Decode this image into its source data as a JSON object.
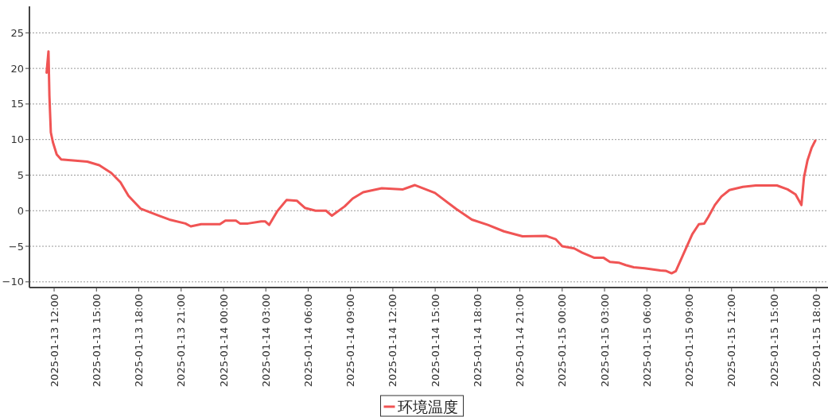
{
  "chart_data": {
    "type": "line",
    "xlim": [
      "2025-01-13T10:15",
      "2025-01-15T18:50"
    ],
    "ylim": [
      -10.8,
      28.5
    ],
    "yticks": [
      -10,
      -5,
      0,
      5,
      10,
      15,
      20,
      25
    ],
    "xticks": [
      {
        "value": "2025-01-13T12:00",
        "label": "2025-01-13 12:00"
      },
      {
        "value": "2025-01-13T15:00",
        "label": "2025-01-13 15:00"
      },
      {
        "value": "2025-01-13T18:00",
        "label": "2025-01-13 18:00"
      },
      {
        "value": "2025-01-13T21:00",
        "label": "2025-01-13 21:00"
      },
      {
        "value": "2025-01-14T00:00",
        "label": "2025-01-14 00:00"
      },
      {
        "value": "2025-01-14T03:00",
        "label": "2025-01-14 03:00"
      },
      {
        "value": "2025-01-14T06:00",
        "label": "2025-01-14 06:00"
      },
      {
        "value": "2025-01-14T09:00",
        "label": "2025-01-14 09:00"
      },
      {
        "value": "2025-01-14T12:00",
        "label": "2025-01-14 12:00"
      },
      {
        "value": "2025-01-14T15:00",
        "label": "2025-01-14 15:00"
      },
      {
        "value": "2025-01-14T18:00",
        "label": "2025-01-14 18:00"
      },
      {
        "value": "2025-01-14T21:00",
        "label": "2025-01-14 21:00"
      },
      {
        "value": "2025-01-15T00:00",
        "label": "2025-01-15 00:00"
      },
      {
        "value": "2025-01-15T03:00",
        "label": "2025-01-15 03:00"
      },
      {
        "value": "2025-01-15T06:00",
        "label": "2025-01-15 06:00"
      },
      {
        "value": "2025-01-15T09:00",
        "label": "2025-01-15 09:00"
      },
      {
        "value": "2025-01-15T12:00",
        "label": "2025-01-15 12:00"
      },
      {
        "value": "2025-01-15T15:00",
        "label": "2025-01-15 15:00"
      },
      {
        "value": "2025-01-15T18:00",
        "label": "2025-01-15 18:00"
      }
    ],
    "grid": "y",
    "legend": "bottom",
    "marker": "none",
    "line_style": "solid",
    "x": [
      "2025-01-13T11:28",
      "2025-01-13T11:36",
      "2025-01-13T11:40",
      "2025-01-13T11:46",
      "2025-01-13T11:55",
      "2025-01-13T12:11",
      "2025-01-13T12:30",
      "2025-01-13T14:21",
      "2025-01-13T15:12",
      "2025-01-13T16:03",
      "2025-01-13T16:42",
      "2025-01-13T17:16",
      "2025-01-13T18:07",
      "2025-01-13T19:26",
      "2025-01-13T20:10",
      "2025-01-13T21:18",
      "2025-01-13T21:41",
      "2025-01-13T22:25",
      "2025-01-13T23:45",
      "2025-01-14T00:08",
      "2025-01-14T00:53",
      "2025-01-14T01:10",
      "2025-01-14T01:44",
      "2025-01-14T02:40",
      "2025-01-14T02:57",
      "2025-01-14T03:14",
      "2025-01-14T03:48",
      "2025-01-14T04:28",
      "2025-01-14T05:12",
      "2025-01-14T05:46",
      "2025-01-14T06:31",
      "2025-01-14T07:16",
      "2025-01-14T07:41",
      "2025-01-14T08:35",
      "2025-01-14T09:09",
      "2025-01-14T09:54",
      "2025-01-14T11:13",
      "2025-01-14T12:43",
      "2025-01-14T13:34",
      "2025-01-14T14:59",
      "2025-01-14T16:29",
      "2025-01-14T17:36",
      "2025-01-14T18:44",
      "2025-01-14T19:52",
      "2025-01-14T21:11",
      "2025-01-14T22:53",
      "2025-01-14T23:32",
      "2025-01-15T00:00",
      "2025-01-15T00:51",
      "2025-01-15T01:25",
      "2025-01-15T02:15",
      "2025-01-15T02:55",
      "2025-01-15T03:23",
      "2025-01-15T04:00",
      "2025-01-15T04:30",
      "2025-01-15T05:04",
      "2025-01-15T05:50",
      "2025-01-15T06:57",
      "2025-01-15T07:20",
      "2025-01-15T07:45",
      "2025-01-15T08:03",
      "2025-01-15T08:50",
      "2025-01-15T09:13",
      "2025-01-15T09:41",
      "2025-01-15T10:04",
      "2025-01-15T10:21",
      "2025-01-15T10:49",
      "2025-01-15T11:17",
      "2025-01-15T11:51",
      "2025-01-15T12:48",
      "2025-01-15T13:43",
      "2025-01-15T15:13",
      "2025-01-15T15:58",
      "2025-01-15T16:32",
      "2025-01-15T16:57",
      "2025-01-15T17:08",
      "2025-01-15T17:23",
      "2025-01-15T17:40",
      "2025-01-15T17:56"
    ],
    "series": [
      {
        "name": "环境温度",
        "color": "#f05454",
        "values": [
          19.4,
          22.4,
          16.1,
          11.0,
          9.6,
          7.9,
          7.2,
          6.9,
          6.4,
          5.3,
          4.0,
          2.1,
          0.3,
          -0.7,
          -1.25,
          -1.8,
          -2.2,
          -1.9,
          -1.9,
          -1.4,
          -1.4,
          -1.8,
          -1.8,
          -1.5,
          -1.5,
          -2.0,
          -0.1,
          1.5,
          1.4,
          0.4,
          0.0,
          0.0,
          -0.7,
          0.6,
          1.7,
          2.6,
          3.15,
          3.0,
          3.6,
          2.5,
          0.25,
          -1.25,
          -2.0,
          -2.9,
          -3.6,
          -3.55,
          -4.0,
          -5.0,
          -5.3,
          -5.9,
          -6.6,
          -6.6,
          -7.2,
          -7.3,
          -7.65,
          -7.95,
          -8.1,
          -8.4,
          -8.45,
          -8.8,
          -8.5,
          -5.0,
          -3.3,
          -1.9,
          -1.8,
          -0.9,
          0.8,
          2.0,
          2.9,
          3.35,
          3.55,
          3.55,
          3.0,
          2.3,
          0.8,
          4.7,
          7.1,
          8.8,
          9.85
        ]
      }
    ]
  }
}
